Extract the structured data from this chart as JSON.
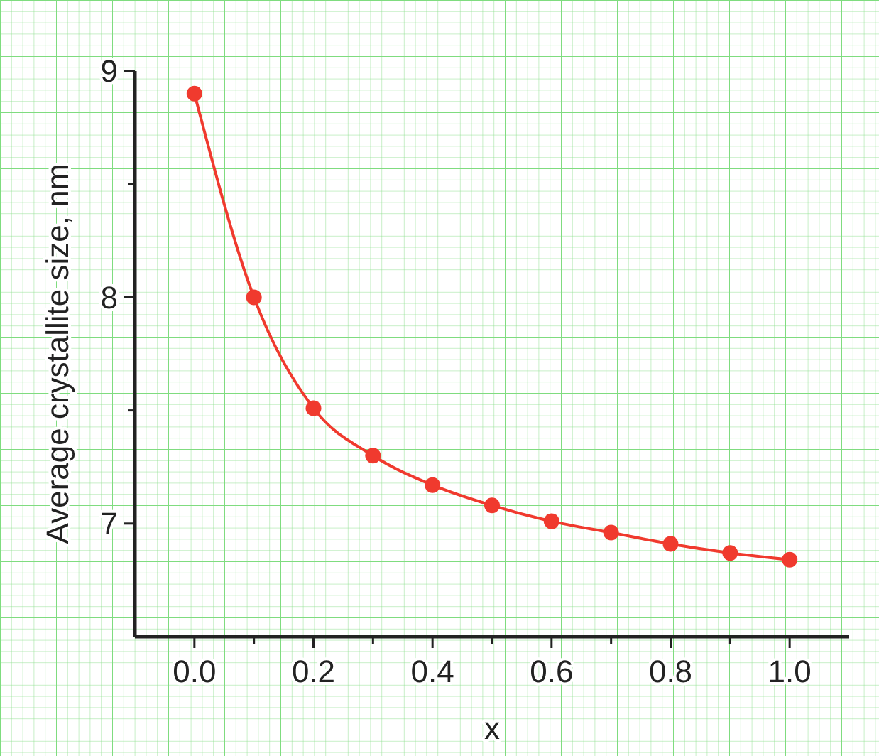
{
  "chart_data": {
    "type": "line",
    "xlabel": "x",
    "ylabel": "Average crystallite size, nm",
    "x": [
      0,
      0.1,
      0.2,
      0.3,
      0.4,
      0.5,
      0.6,
      0.7,
      0.8,
      0.9,
      1.0
    ],
    "series": [
      {
        "color": "#f03a2e",
        "values": [
          8.9,
          8.0,
          7.51,
          7.3,
          7.17,
          7.08,
          7.01,
          6.96,
          6.91,
          6.87,
          6.84
        ]
      }
    ],
    "xlim": [
      -0.1,
      1.1
    ],
    "ylim": [
      6.5,
      9.0
    ],
    "xticks": [
      {
        "value": 0,
        "label": "0.0"
      },
      {
        "value": 0.1,
        "label": null
      },
      {
        "value": 0.2,
        "label": "0.2"
      },
      {
        "value": 0.3,
        "label": null
      },
      {
        "value": 0.4,
        "label": "0.4"
      },
      {
        "value": 0.5,
        "label": null
      },
      {
        "value": 0.6,
        "label": "0.6"
      },
      {
        "value": 0.7,
        "label": null
      },
      {
        "value": 0.8,
        "label": "0.8"
      },
      {
        "value": 0.9,
        "label": null
      },
      {
        "value": 1.0,
        "label": "1.0"
      }
    ],
    "yticks": [
      7,
      {
        "value": 7.5,
        "label": null
      },
      8,
      {
        "value": 8.5,
        "label": null
      },
      9
    ],
    "marker": "circle",
    "line_style": "solid"
  }
}
